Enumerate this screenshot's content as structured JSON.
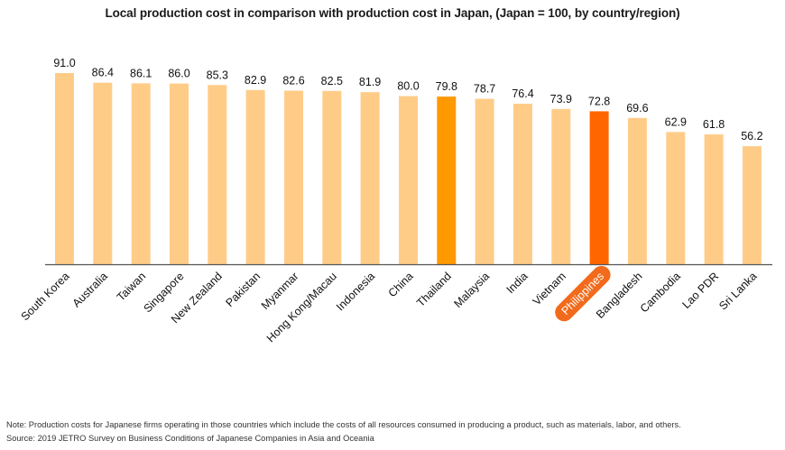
{
  "chart_data": {
    "type": "bar",
    "title": "Local production cost in comparison with production cost in Japan, (Japan = 100, by country/region)",
    "xlabel": "",
    "ylabel": "",
    "ylim": [
      0,
      100
    ],
    "grid": false,
    "legend": "none",
    "categories": [
      "South Korea",
      "Australia",
      "Taiwan",
      "Singapore",
      "New Zealand",
      "Pakistan",
      "Myanmar",
      "Hong Kong/Macau",
      "Indonesia",
      "China",
      "Thailand",
      "Malaysia",
      "India",
      "Vietnam",
      "Philippines",
      "Bangladesh",
      "Cambodia",
      "Lao PDR",
      "Sri Lanka"
    ],
    "values": [
      91.0,
      86.4,
      86.1,
      86.0,
      85.3,
      82.9,
      82.6,
      82.5,
      81.9,
      80.0,
      79.8,
      78.7,
      76.4,
      73.9,
      72.8,
      69.6,
      62.9,
      61.8,
      56.2
    ],
    "value_labels": [
      "91.0",
      "86.4",
      "86.1",
      "86.0",
      "85.3",
      "82.9",
      "82.6",
      "82.5",
      "81.9",
      "80.0",
      "79.8",
      "78.7",
      "76.4",
      "73.9",
      "72.8",
      "69.6",
      "62.9",
      "61.8",
      "56.2"
    ],
    "highlights": {
      "Thailand": "secondary",
      "Philippines": "primary"
    }
  },
  "colors": {
    "default_bar": "#FFCC88",
    "secondary_bar": "#FF9900",
    "primary_bar": "#FF6600",
    "primary_label_pill": "#F26B1D",
    "axis": "#555555"
  },
  "notes": {
    "note": "Note: Production costs for Japanese firms operating in those countries which include the costs of all resources consumed in producing a product, such as materials, labor, and others.",
    "source": "Source: 2019 JETRO Survey on Business Conditions of Japanese Companies in Asia and Oceania"
  }
}
